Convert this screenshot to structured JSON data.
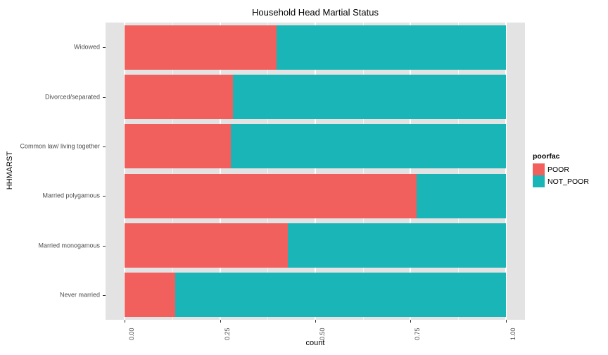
{
  "title": "Household Head Martial Status",
  "y_axis": {
    "label": "HHMARST"
  },
  "x_axis": {
    "label": "count",
    "ticks": [
      {
        "label": "0.00",
        "value": 0
      },
      {
        "label": "0.25",
        "value": 0.25
      },
      {
        "label": "0.50",
        "value": 0.5
      },
      {
        "label": "0.75",
        "value": 0.75
      },
      {
        "label": "1.00",
        "value": 1
      }
    ],
    "minor_gridlines": [
      0.125,
      0.375,
      0.625,
      0.875
    ]
  },
  "legend": {
    "title": "poorfac",
    "items": [
      {
        "label": "POOR",
        "color": "#F1605D"
      },
      {
        "label": "NOT_POOR",
        "color": "#1AB5B6"
      }
    ]
  },
  "colors": {
    "poor": "#F1605D",
    "not_poor": "#1AB5B6",
    "panel_background": "#E3E3E3",
    "gridline": "#FFFFFF",
    "axis_text": "#4d4d4d"
  },
  "chart_data": {
    "type": "bar",
    "orientation": "horizontal",
    "stacked": true,
    "normalized": true,
    "title": "Household Head Martial Status",
    "xlabel": "count",
    "ylabel": "HHMARST",
    "xlim": [
      0,
      1
    ],
    "grid": true,
    "legend_position": "right",
    "categories": [
      "Widowed",
      "Divorced/separated",
      "Common law/ living together",
      "Married polygamous",
      "Married monogamous",
      "Never married"
    ],
    "series": [
      {
        "name": "POOR",
        "color": "#F1605D",
        "values": [
          0.399,
          0.284,
          0.279,
          0.766,
          0.428,
          0.133
        ]
      },
      {
        "name": "NOT_POOR",
        "color": "#1AB5B6",
        "values": [
          0.601,
          0.716,
          0.721,
          0.234,
          0.572,
          0.867
        ]
      }
    ]
  }
}
